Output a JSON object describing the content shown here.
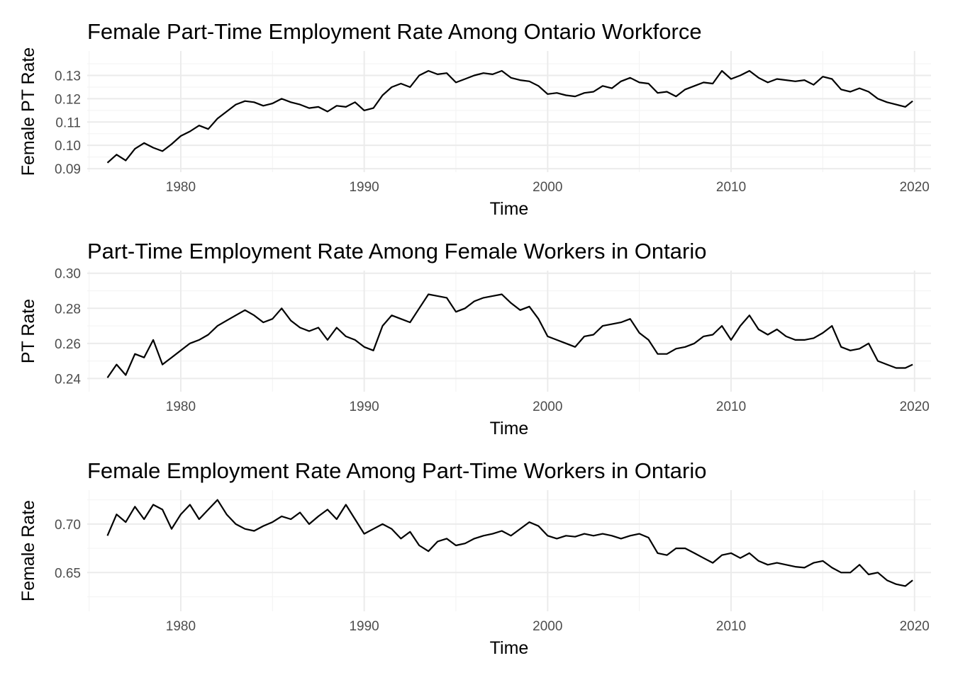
{
  "chart_data": [
    {
      "type": "line",
      "title": "Female Part-Time Employment Rate Among Ontario Workforce",
      "xlabel": "Time",
      "ylabel": "Female PT Rate",
      "xlim": [
        1974.9,
        2020.9
      ],
      "ylim": [
        0.0885,
        0.1405
      ],
      "xticks": [
        1980,
        1990,
        2000,
        2010,
        2020
      ],
      "yticks": [
        0.09,
        0.1,
        0.11,
        0.12,
        0.13
      ],
      "ytick_labels": [
        "0.09",
        "0.10",
        "0.11",
        "0.12",
        "0.13"
      ],
      "grid": true,
      "series": [
        {
          "x": [
            1976.0,
            1976.5,
            1977.0,
            1977.5,
            1978.0,
            1978.5,
            1979.0,
            1979.5,
            1980.0,
            1980.5,
            1981.0,
            1981.5,
            1982.0,
            1982.5,
            1983.0,
            1983.5,
            1984.0,
            1984.5,
            1985.0,
            1985.5,
            1986.0,
            1986.5,
            1987.0,
            1987.5,
            1988.0,
            1988.5,
            1989.0,
            1989.5,
            1990.0,
            1990.5,
            1991.0,
            1991.5,
            1992.0,
            1992.5,
            1993.0,
            1993.5,
            1994.0,
            1994.5,
            1995.0,
            1995.5,
            1996.0,
            1996.5,
            1997.0,
            1997.5,
            1998.0,
            1998.5,
            1999.0,
            1999.5,
            2000.0,
            2000.5,
            2001.0,
            2001.5,
            2002.0,
            2002.5,
            2003.0,
            2003.5,
            2004.0,
            2004.5,
            2005.0,
            2005.5,
            2006.0,
            2006.5,
            2007.0,
            2007.5,
            2008.0,
            2008.5,
            2009.0,
            2009.5,
            2010.0,
            2010.5,
            2011.0,
            2011.5,
            2012.0,
            2012.5,
            2013.0,
            2013.5,
            2014.0,
            2014.5,
            2015.0,
            2015.5,
            2016.0,
            2016.5,
            2017.0,
            2017.5,
            2018.0,
            2018.5,
            2019.0,
            2019.5,
            2019.9
          ],
          "y": [
            0.0925,
            0.096,
            0.0935,
            0.0985,
            0.101,
            0.099,
            0.0975,
            0.1005,
            0.104,
            0.106,
            0.1085,
            0.107,
            0.1115,
            0.1145,
            0.1175,
            0.119,
            0.1185,
            0.117,
            0.118,
            0.12,
            0.1185,
            0.1175,
            0.116,
            0.1165,
            0.1145,
            0.117,
            0.1165,
            0.1185,
            0.115,
            0.116,
            0.1215,
            0.125,
            0.1265,
            0.125,
            0.13,
            0.132,
            0.1305,
            0.131,
            0.127,
            0.1285,
            0.13,
            0.131,
            0.1305,
            0.132,
            0.129,
            0.128,
            0.1275,
            0.1255,
            0.122,
            0.1225,
            0.1215,
            0.121,
            0.1225,
            0.123,
            0.1255,
            0.1245,
            0.1275,
            0.129,
            0.127,
            0.1265,
            0.1225,
            0.123,
            0.121,
            0.124,
            0.1255,
            0.127,
            0.1265,
            0.132,
            0.1285,
            0.13,
            0.132,
            0.129,
            0.127,
            0.1285,
            0.128,
            0.1275,
            0.128,
            0.126,
            0.1295,
            0.1285,
            0.124,
            0.123,
            0.1245,
            0.123,
            0.12,
            0.1185,
            0.1175,
            0.1165,
            0.119
          ]
        }
      ]
    },
    {
      "type": "line",
      "title": "Part-Time Employment Rate Among Female Workers in Ontario",
      "xlabel": "Time",
      "ylabel": "PT Rate",
      "xlim": [
        1974.9,
        2020.9
      ],
      "ylim": [
        0.2325,
        0.3015
      ],
      "xticks": [
        1980,
        1990,
        2000,
        2010,
        2020
      ],
      "yticks": [
        0.24,
        0.26,
        0.28,
        0.3
      ],
      "ytick_labels": [
        "0.24",
        "0.26",
        "0.28",
        "0.30"
      ],
      "grid": true,
      "series": [
        {
          "x": [
            1976.0,
            1976.5,
            1977.0,
            1977.5,
            1978.0,
            1978.5,
            1979.0,
            1979.5,
            1980.0,
            1980.5,
            1981.0,
            1981.5,
            1982.0,
            1982.5,
            1983.0,
            1983.5,
            1984.0,
            1984.5,
            1985.0,
            1985.5,
            1986.0,
            1986.5,
            1987.0,
            1987.5,
            1988.0,
            1988.5,
            1989.0,
            1989.5,
            1990.0,
            1990.5,
            1991.0,
            1991.5,
            1992.0,
            1992.5,
            1993.0,
            1993.5,
            1994.0,
            1994.5,
            1995.0,
            1995.5,
            1996.0,
            1996.5,
            1997.0,
            1997.5,
            1998.0,
            1998.5,
            1999.0,
            1999.5,
            2000.0,
            2000.5,
            2001.0,
            2001.5,
            2002.0,
            2002.5,
            2003.0,
            2003.5,
            2004.0,
            2004.5,
            2005.0,
            2005.5,
            2006.0,
            2006.5,
            2007.0,
            2007.5,
            2008.0,
            2008.5,
            2009.0,
            2009.5,
            2010.0,
            2010.5,
            2011.0,
            2011.5,
            2012.0,
            2012.5,
            2013.0,
            2013.5,
            2014.0,
            2014.5,
            2015.0,
            2015.5,
            2016.0,
            2016.5,
            2017.0,
            2017.5,
            2018.0,
            2018.5,
            2019.0,
            2019.5,
            2019.9
          ],
          "y": [
            0.2405,
            0.248,
            0.242,
            0.254,
            0.252,
            0.262,
            0.248,
            0.252,
            0.256,
            0.26,
            0.262,
            0.265,
            0.27,
            0.273,
            0.276,
            0.279,
            0.276,
            0.272,
            0.274,
            0.28,
            0.273,
            0.269,
            0.267,
            0.269,
            0.262,
            0.269,
            0.264,
            0.262,
            0.258,
            0.256,
            0.27,
            0.276,
            0.274,
            0.272,
            0.28,
            0.288,
            0.287,
            0.286,
            0.278,
            0.28,
            0.284,
            0.286,
            0.287,
            0.288,
            0.283,
            0.279,
            0.281,
            0.274,
            0.264,
            0.262,
            0.26,
            0.258,
            0.264,
            0.265,
            0.27,
            0.271,
            0.272,
            0.274,
            0.266,
            0.262,
            0.254,
            0.254,
            0.257,
            0.258,
            0.26,
            0.264,
            0.265,
            0.27,
            0.262,
            0.27,
            0.276,
            0.268,
            0.265,
            0.268,
            0.264,
            0.262,
            0.262,
            0.263,
            0.266,
            0.27,
            0.258,
            0.256,
            0.257,
            0.26,
            0.25,
            0.248,
            0.246,
            0.246,
            0.248
          ]
        }
      ]
    },
    {
      "type": "line",
      "title": "Female Employment Rate Among Part-Time Workers in Ontario",
      "xlabel": "Time",
      "ylabel": "Female Rate",
      "xlim": [
        1974.9,
        2020.9
      ],
      "ylim": [
        0.61,
        0.735
      ],
      "xticks": [
        1980,
        1990,
        2000,
        2010,
        2020
      ],
      "yticks": [
        0.65,
        0.7
      ],
      "ytick_labels": [
        "0.65",
        "0.70"
      ],
      "grid": true,
      "series": [
        {
          "x": [
            1976.0,
            1976.5,
            1977.0,
            1977.5,
            1978.0,
            1978.5,
            1979.0,
            1979.5,
            1980.0,
            1980.5,
            1981.0,
            1981.5,
            1982.0,
            1982.5,
            1983.0,
            1983.5,
            1984.0,
            1984.5,
            1985.0,
            1985.5,
            1986.0,
            1986.5,
            1987.0,
            1987.5,
            1988.0,
            1988.5,
            1989.0,
            1989.5,
            1990.0,
            1990.5,
            1991.0,
            1991.5,
            1992.0,
            1992.5,
            1993.0,
            1993.5,
            1994.0,
            1994.5,
            1995.0,
            1995.5,
            1996.0,
            1996.5,
            1997.0,
            1997.5,
            1998.0,
            1998.5,
            1999.0,
            1999.5,
            2000.0,
            2000.5,
            2001.0,
            2001.5,
            2002.0,
            2002.5,
            2003.0,
            2003.5,
            2004.0,
            2004.5,
            2005.0,
            2005.5,
            2006.0,
            2006.5,
            2007.0,
            2007.5,
            2008.0,
            2008.5,
            2009.0,
            2009.5,
            2010.0,
            2010.5,
            2011.0,
            2011.5,
            2012.0,
            2012.5,
            2013.0,
            2013.5,
            2014.0,
            2014.5,
            2015.0,
            2015.5,
            2016.0,
            2016.5,
            2017.0,
            2017.5,
            2018.0,
            2018.5,
            2019.0,
            2019.5,
            2019.9
          ],
          "y": [
            0.688,
            0.71,
            0.702,
            0.718,
            0.705,
            0.72,
            0.715,
            0.695,
            0.71,
            0.72,
            0.705,
            0.715,
            0.725,
            0.71,
            0.7,
            0.695,
            0.693,
            0.698,
            0.702,
            0.708,
            0.705,
            0.712,
            0.7,
            0.708,
            0.715,
            0.705,
            0.72,
            0.705,
            0.69,
            0.695,
            0.7,
            0.695,
            0.685,
            0.692,
            0.678,
            0.672,
            0.682,
            0.685,
            0.678,
            0.68,
            0.685,
            0.688,
            0.69,
            0.693,
            0.688,
            0.695,
            0.702,
            0.698,
            0.688,
            0.685,
            0.688,
            0.687,
            0.69,
            0.688,
            0.69,
            0.688,
            0.685,
            0.688,
            0.69,
            0.686,
            0.67,
            0.668,
            0.675,
            0.675,
            0.67,
            0.665,
            0.66,
            0.668,
            0.67,
            0.665,
            0.67,
            0.662,
            0.658,
            0.66,
            0.658,
            0.656,
            0.655,
            0.66,
            0.662,
            0.655,
            0.65,
            0.65,
            0.658,
            0.648,
            0.65,
            0.642,
            0.638,
            0.636,
            0.642
          ]
        }
      ]
    }
  ]
}
